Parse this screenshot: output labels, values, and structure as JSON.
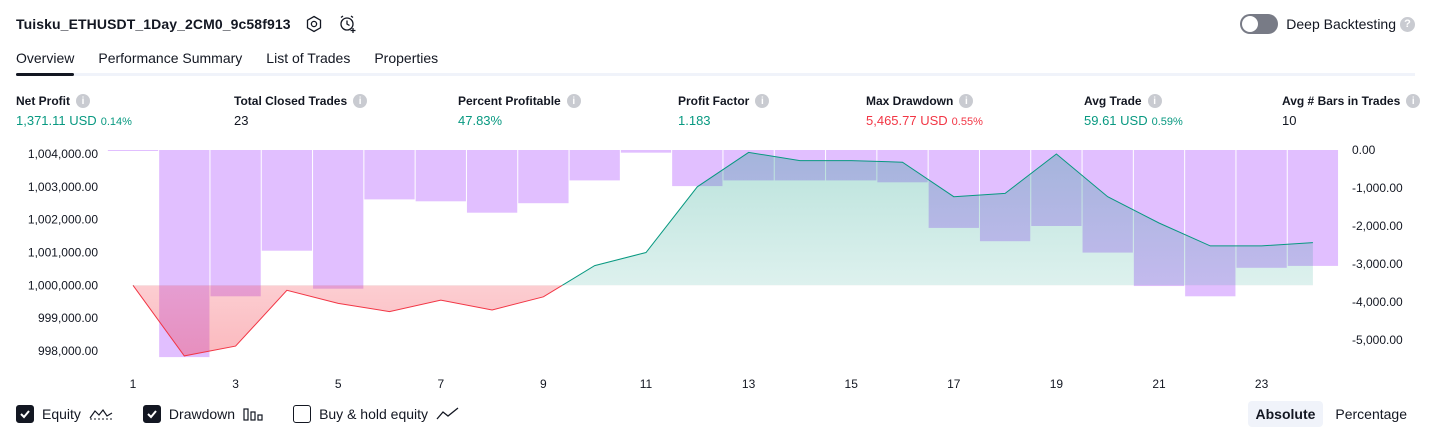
{
  "header": {
    "title": "Tuisku_ETHUSDT_1Day_2CM0_9c58f913",
    "deep_backtesting_label": "Deep Backtesting",
    "deep_backtesting_on": false
  },
  "tabs": [
    {
      "label": "Overview",
      "active": true
    },
    {
      "label": "Performance Summary",
      "active": false
    },
    {
      "label": "List of Trades",
      "active": false
    },
    {
      "label": "Properties",
      "active": false
    }
  ],
  "metrics": [
    {
      "label": "Net Profit",
      "value": "1,371.11 USD",
      "pct": "0.14%",
      "color": "#089981"
    },
    {
      "label": "Total Closed Trades",
      "value": "23",
      "pct": "",
      "color": "#131722"
    },
    {
      "label": "Percent Profitable",
      "value": "47.83%",
      "pct": "",
      "color": "#089981"
    },
    {
      "label": "Profit Factor",
      "value": "1.183",
      "pct": "",
      "color": "#089981"
    },
    {
      "label": "Max Drawdown",
      "value": "5,465.77 USD",
      "pct": "0.55%",
      "color": "#f23645"
    },
    {
      "label": "Avg Trade",
      "value": "59.61 USD",
      "pct": "0.59%",
      "color": "#089981"
    },
    {
      "label": "Avg # Bars in Trades",
      "value": "10",
      "pct": "",
      "color": "#131722"
    }
  ],
  "chart_data": {
    "type": "line",
    "x_ticks": [
      "1",
      "3",
      "5",
      "7",
      "9",
      "11",
      "13",
      "15",
      "17",
      "19",
      "21",
      "23"
    ],
    "left_axis": {
      "ticks": [
        "1,004,000.00",
        "1,003,000.00",
        "1,002,000.00",
        "1,001,000.00",
        "1,000,000.00",
        "999,000.00",
        "998,000.00"
      ],
      "range": [
        997800,
        1004150
      ]
    },
    "right_axis": {
      "ticks": [
        "0.00",
        "-1,000.00",
        "-2,000.00",
        "-3,000.00",
        "-4,000.00",
        "-5,000.00"
      ],
      "range": [
        -5450,
        0
      ]
    },
    "equity": {
      "baseline": 1000000,
      "x": [
        1,
        2,
        3,
        4,
        5,
        6,
        7,
        8,
        9,
        10,
        11,
        12,
        13,
        14,
        15,
        16,
        17,
        18,
        19,
        20,
        21,
        22,
        23,
        24
      ],
      "values": [
        1000000,
        997850,
        998150,
        999850,
        999450,
        999200,
        999550,
        999250,
        999650,
        1000600,
        1001000,
        1003000,
        1004050,
        1003800,
        1003800,
        1003750,
        1002700,
        1002800,
        1004000,
        1002700,
        1001900,
        1001200,
        1001200,
        1001300
      ],
      "color_up": "#089981",
      "color_down": "#f23645"
    },
    "drawdown": {
      "x": [
        1,
        2,
        3,
        4,
        5,
        6,
        7,
        8,
        9,
        10,
        11,
        12,
        13,
        14,
        15,
        16,
        17,
        18,
        19,
        20,
        21,
        22,
        23,
        24
      ],
      "values": [
        -10,
        -5450,
        -3850,
        -2650,
        -3650,
        -1300,
        -1350,
        -1650,
        -1400,
        -800,
        -70,
        -950,
        -800,
        -800,
        -800,
        -850,
        -2050,
        -2400,
        -2000,
        -2700,
        -3580,
        -3850,
        -3100,
        -3050
      ],
      "color": "#e1bfff"
    }
  },
  "legend": {
    "equity": {
      "label": "Equity",
      "checked": true
    },
    "drawdown": {
      "label": "Drawdown",
      "checked": true
    },
    "buyhold": {
      "label": "Buy & hold equity",
      "checked": false
    }
  },
  "view_toggle": {
    "absolute": "Absolute",
    "percentage": "Percentage",
    "active": "absolute"
  }
}
